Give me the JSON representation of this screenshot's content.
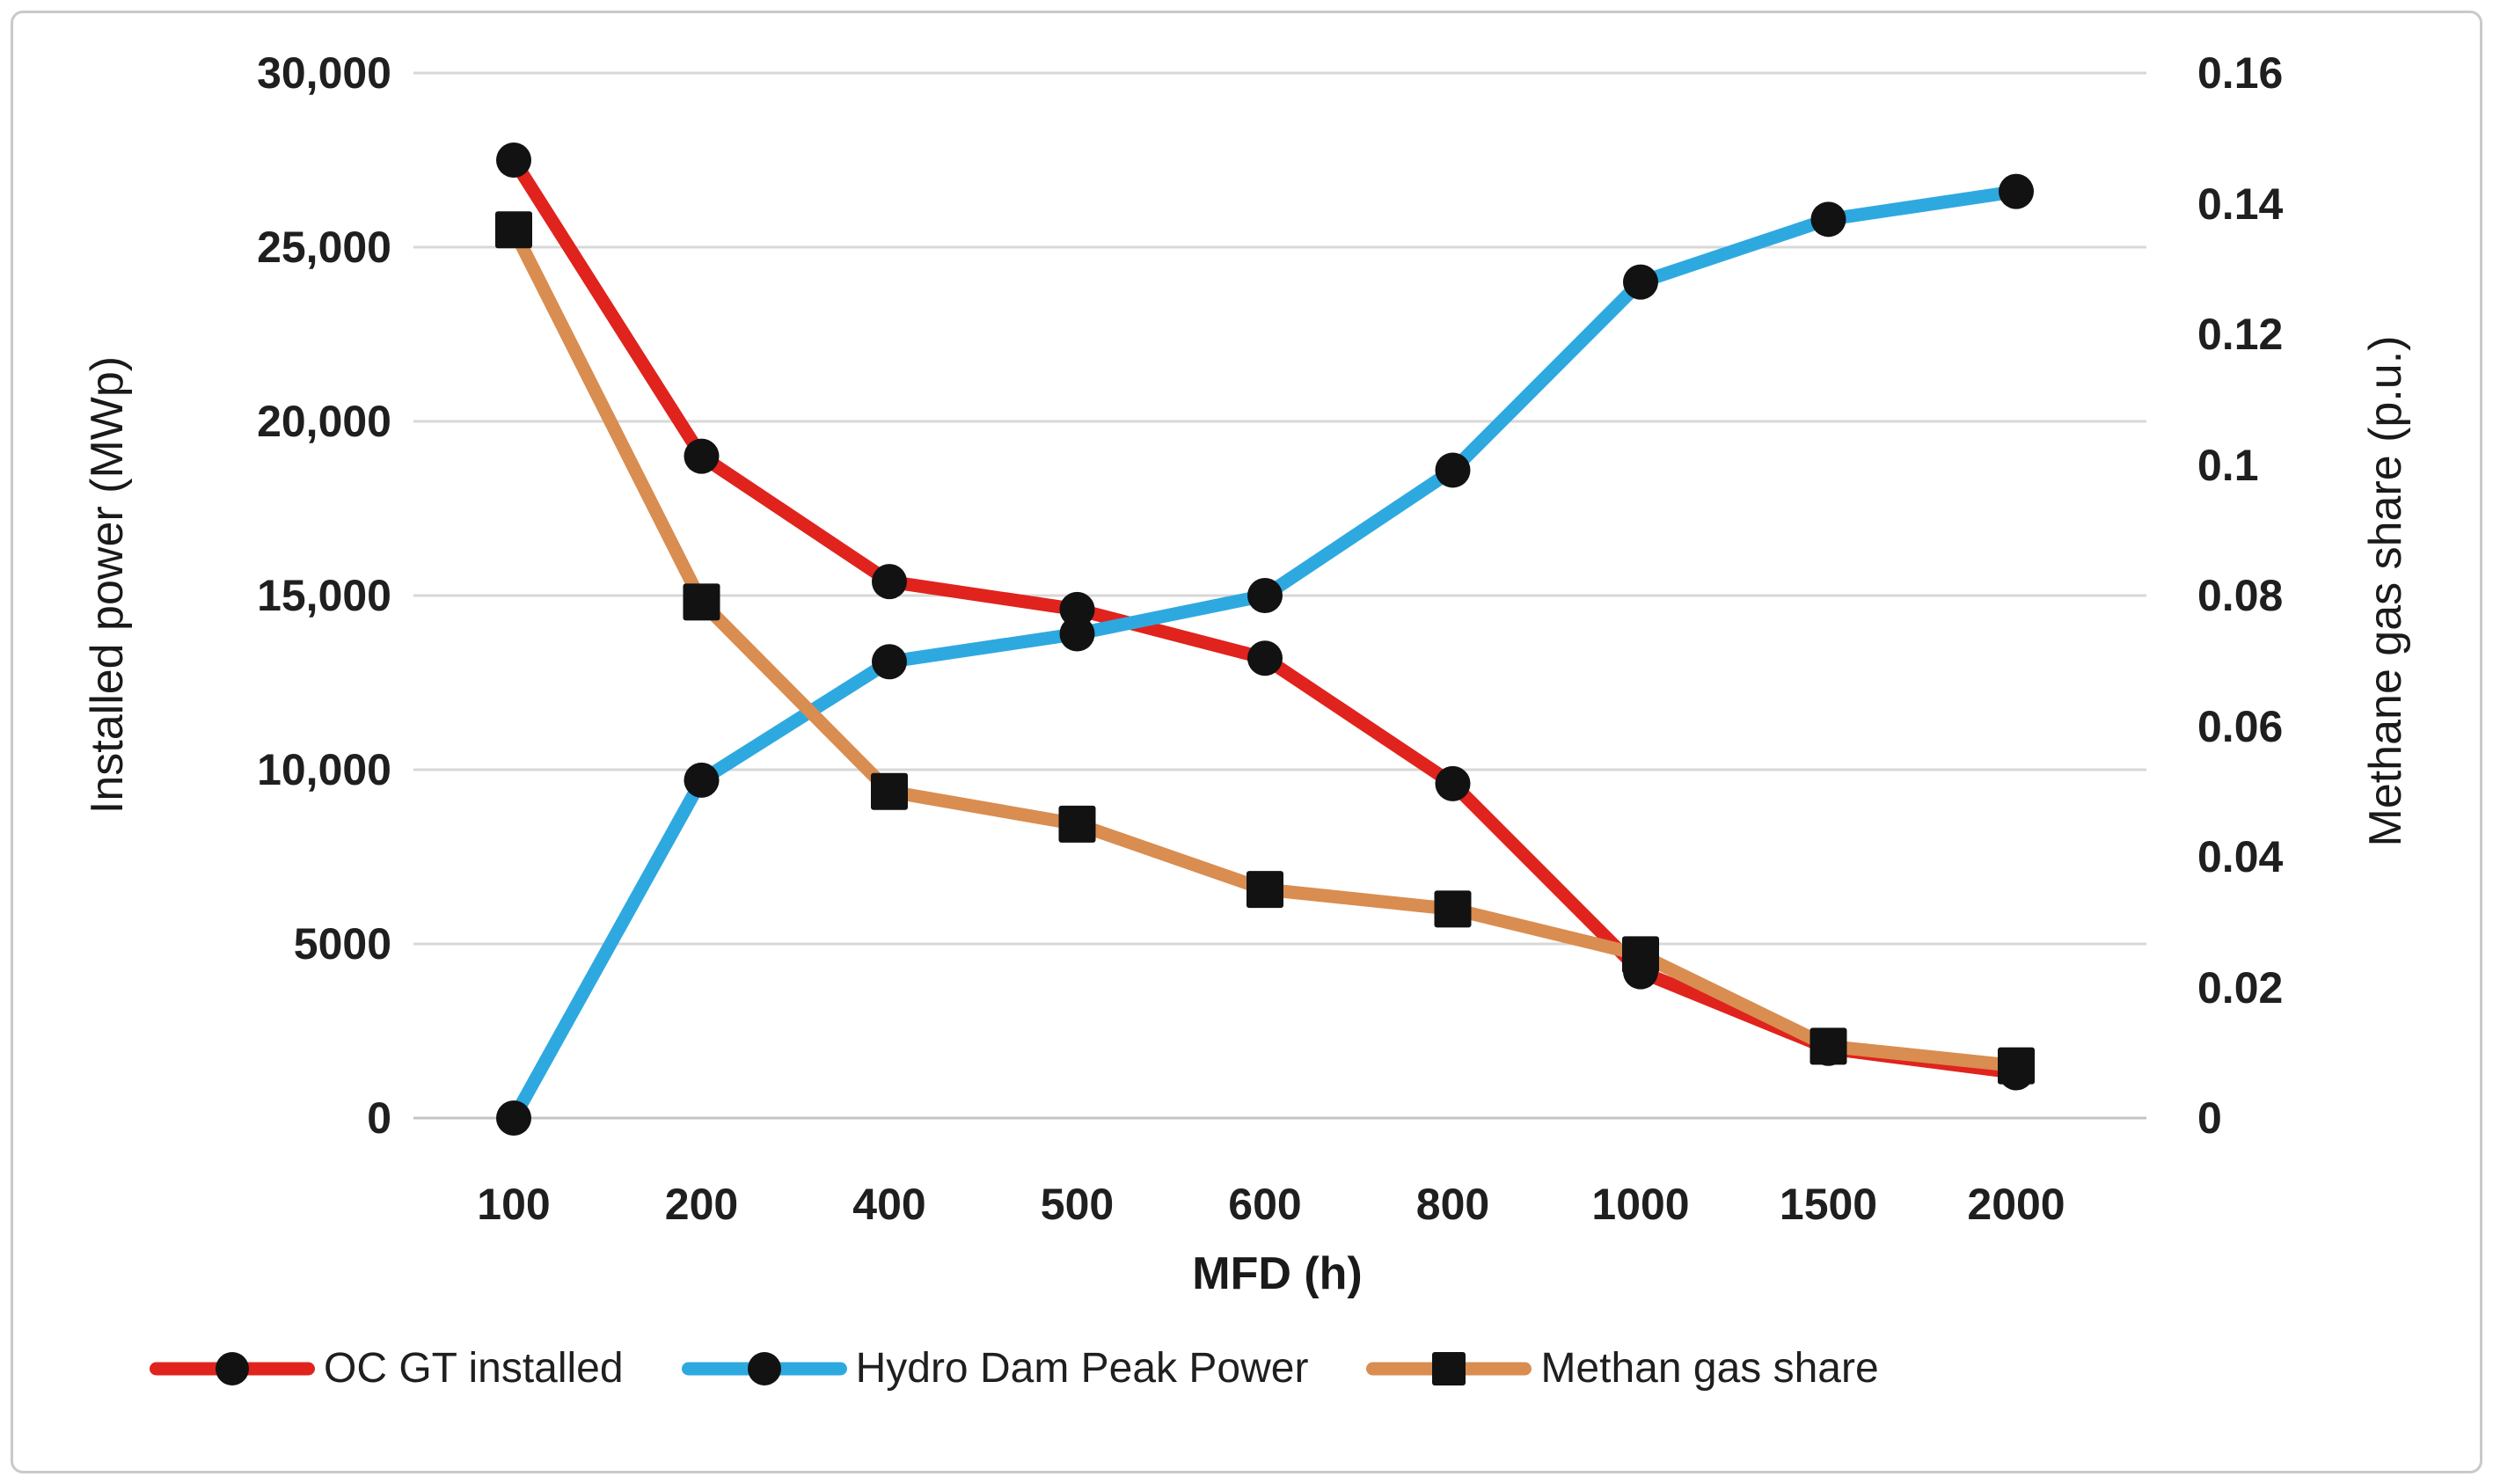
{
  "figure": {
    "x_axis_title": "MFD (h)",
    "left_axis_title": "Installed power (MWp)",
    "right_axis_title": "Methane gas share (p.u.)"
  },
  "chart_data": {
    "type": "line",
    "title": "",
    "xlabel": "MFD (h)",
    "x_categories": [
      "100",
      "200",
      "400",
      "500",
      "600",
      "800",
      "1000",
      "1500",
      "2000"
    ],
    "left_axis": {
      "label": "Installed power (MWp)",
      "min": 0,
      "max": 30000,
      "tick_labels": [
        "30,000",
        "25,000",
        "20,000",
        "15,000",
        "10,000",
        "5000",
        "0"
      ]
    },
    "right_axis": {
      "label": "Methane gas share (p.u.)",
      "min": 0,
      "max": 0.16,
      "tick_labels": [
        "0.16",
        "0.14",
        "0.12",
        "0.1",
        "0.08",
        "0.06",
        "0.04",
        "0.02",
        "0"
      ]
    },
    "grid": "horizontal",
    "legend_position": "bottom",
    "series": [
      {
        "name": "OC GT installed",
        "axis": "left",
        "color": "#e0231d",
        "marker": "circle",
        "values": [
          27500,
          19000,
          15400,
          14600,
          13200,
          9600,
          4200,
          2000,
          1300
        ]
      },
      {
        "name": "Hydro Dam Peak Power",
        "axis": "left",
        "color": "#2ea9e0",
        "marker": "circle",
        "values": [
          0,
          9700,
          13100,
          13900,
          15000,
          18600,
          24000,
          25800,
          26600
        ]
      },
      {
        "name": "Methan gas share",
        "axis": "right",
        "color": "#d98d50",
        "marker": "square",
        "values": [
          0.136,
          0.079,
          0.05,
          0.045,
          0.035,
          0.032,
          0.025,
          0.011,
          0.008
        ]
      }
    ]
  },
  "colors": {
    "gridline": "#d8d8d8",
    "axis_line": "#c4c4c4",
    "marker": "#121212",
    "text": "#1f1f1f",
    "border": "#c9c9c9"
  }
}
